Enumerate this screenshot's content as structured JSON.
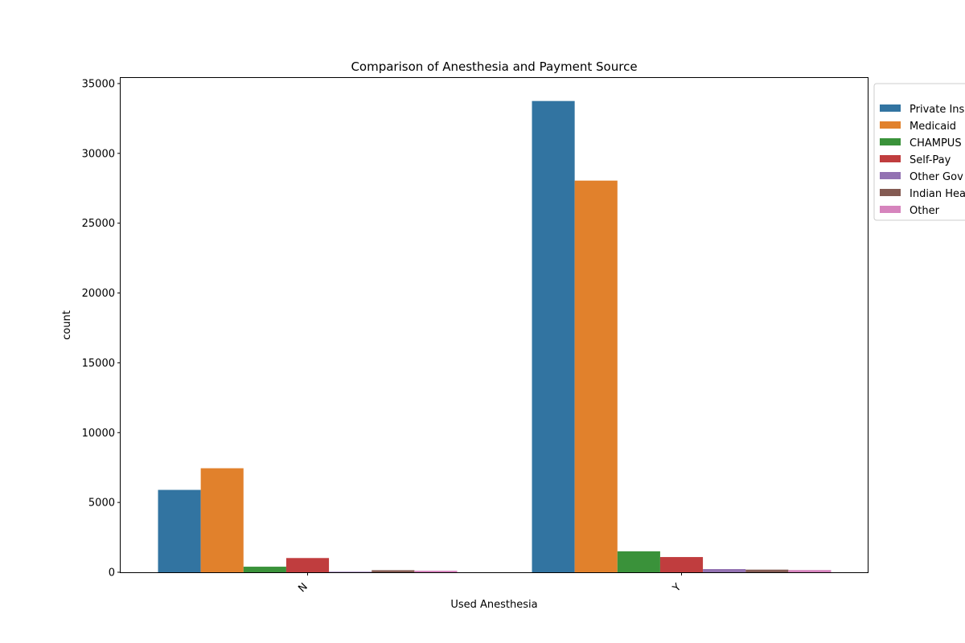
{
  "chart_data": {
    "type": "bar",
    "title": "Comparison of Anesthesia and Payment Source",
    "xlabel": "Used Anesthesia",
    "ylabel": "count",
    "categories": [
      "N",
      "Y"
    ],
    "ylim": [
      0,
      35400
    ],
    "yticks": [
      0,
      5000,
      10000,
      15000,
      20000,
      25000,
      30000,
      35000
    ],
    "grid": false,
    "legend_position": "right, outside plot area (clipped)",
    "series": [
      {
        "name": "Private Ins",
        "color": "#3274a1",
        "values": [
          5900,
          33750
        ]
      },
      {
        "name": "Medicaid",
        "color": "#e1812c",
        "values": [
          7450,
          28050
        ]
      },
      {
        "name": "CHAMPUS",
        "color": "#3a923a",
        "values": [
          400,
          1500
        ]
      },
      {
        "name": "Self-Pay",
        "color": "#c03d3e",
        "values": [
          1020,
          1090
        ]
      },
      {
        "name": "Other Gov",
        "color": "#9372b2",
        "values": [
          40,
          230
        ]
      },
      {
        "name": "Indian Hea",
        "color": "#845b53",
        "values": [
          150,
          190
        ]
      },
      {
        "name": "Other",
        "color": "#d684bd",
        "values": [
          110,
          160
        ]
      }
    ]
  }
}
